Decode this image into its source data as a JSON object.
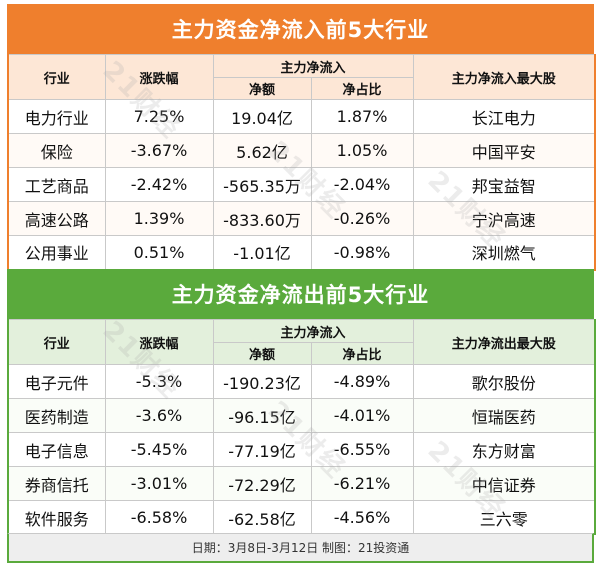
{
  "colors": {
    "inflow_accent": "#ef7f2d",
    "outflow_accent": "#5aaa3c"
  },
  "watermark": "21财经",
  "inflow": {
    "title": "主力资金净流入前5大行业",
    "headers": {
      "industry": "行业",
      "change": "涨跌幅",
      "main_flow": "主力净流入",
      "net_amount": "净额",
      "net_ratio": "净占比",
      "top_stock": "主力净流入最大股"
    },
    "rows": [
      {
        "industry": "电力行业",
        "change": "7.25%",
        "net_amount": "19.04亿",
        "net_ratio": "1.87%",
        "top_stock": "长江电力"
      },
      {
        "industry": "保险",
        "change": "-3.67%",
        "net_amount": "5.62亿",
        "net_ratio": "1.05%",
        "top_stock": "中国平安"
      },
      {
        "industry": "工艺商品",
        "change": "-2.42%",
        "net_amount": "-565.35万",
        "net_ratio": "-2.04%",
        "top_stock": "邦宝益智"
      },
      {
        "industry": "高速公路",
        "change": "1.39%",
        "net_amount": "-833.60万",
        "net_ratio": "-0.26%",
        "top_stock": "宁沪高速"
      },
      {
        "industry": "公用事业",
        "change": "0.51%",
        "net_amount": "-1.01亿",
        "net_ratio": "-0.98%",
        "top_stock": "深圳燃气"
      }
    ]
  },
  "outflow": {
    "title": "主力资金净流出前5大行业",
    "headers": {
      "industry": "行业",
      "change": "涨跌幅",
      "main_flow": "主力净流入",
      "net_amount": "净额",
      "net_ratio": "净占比",
      "top_stock": "主力净流出最大股"
    },
    "rows": [
      {
        "industry": "电子元件",
        "change": "-5.3%",
        "net_amount": "-190.23亿",
        "net_ratio": "-4.89%",
        "top_stock": "歌尔股份"
      },
      {
        "industry": "医药制造",
        "change": "-3.6%",
        "net_amount": "-96.15亿",
        "net_ratio": "-4.01%",
        "top_stock": "恒瑞医药"
      },
      {
        "industry": "电子信息",
        "change": "-5.45%",
        "net_amount": "-77.19亿",
        "net_ratio": "-6.55%",
        "top_stock": "东方财富"
      },
      {
        "industry": "券商信托",
        "change": "-3.01%",
        "net_amount": "-72.29亿",
        "net_ratio": "-6.21%",
        "top_stock": "中信证券"
      },
      {
        "industry": "软件服务",
        "change": "-6.58%",
        "net_amount": "-62.58亿",
        "net_ratio": "-4.56%",
        "top_stock": "三六零"
      }
    ]
  },
  "footer": "日期：3月8日-3月12日 制图：21投资通"
}
